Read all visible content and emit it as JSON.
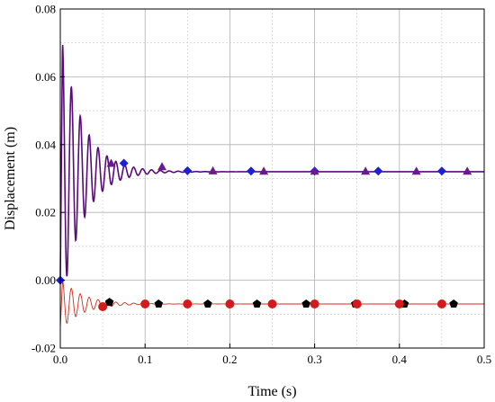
{
  "chart_data": {
    "type": "line",
    "title": "",
    "xlabel": "Time (s)",
    "ylabel": "Displacement (m)",
    "xlim": [
      0,
      0.5
    ],
    "ylim": [
      -0.02,
      0.08
    ],
    "x_ticks": [
      "0.0",
      "0.1",
      "0.2",
      "0.3",
      "0.4",
      "0.5"
    ],
    "y_ticks": [
      "-0.02",
      "0.00",
      "0.02",
      "0.04",
      "0.06",
      "0.08"
    ],
    "grid": true,
    "legend": "none",
    "series": [
      {
        "color": "#5a0a7a",
        "marker": "line",
        "equilibrium": 0.032,
        "initial": 0.0,
        "first_peak": 0.07,
        "description_points": [
          [
            0.0,
            0.0
          ],
          [
            0.003,
            0.07
          ],
          [
            0.012,
            0.003
          ],
          [
            0.019,
            0.053
          ],
          [
            0.03,
            0.043
          ],
          [
            0.06,
            0.036
          ],
          [
            0.1,
            0.033
          ],
          [
            0.15,
            0.032
          ],
          [
            0.5,
            0.032
          ]
        ]
      },
      {
        "color": "#d42a1a",
        "marker": "line",
        "equilibrium": -0.007,
        "initial": -0.014,
        "first_peak": 0.0,
        "description_points": [
          [
            0.0,
            -0.014
          ],
          [
            0.003,
            0.0
          ],
          [
            0.03,
            -0.004
          ],
          [
            0.06,
            -0.006
          ],
          [
            0.1,
            -0.007
          ],
          [
            0.5,
            -0.007
          ]
        ]
      },
      {
        "color": "#1f1fd6",
        "marker": "diamond",
        "x": [
          0.0,
          0.075,
          0.15,
          0.225,
          0.3,
          0.375,
          0.45
        ],
        "y": [
          0.0,
          0.0345,
          0.0323,
          0.0322,
          0.0322,
          0.0322,
          0.0322
        ]
      },
      {
        "color": "#6a1a8a",
        "marker": "triangle",
        "x": [
          0.06,
          0.12,
          0.18,
          0.24,
          0.3,
          0.36,
          0.42,
          0.48
        ],
        "y": [
          0.0345,
          0.0335,
          0.0323,
          0.0322,
          0.0322,
          0.0322,
          0.0322,
          0.0322
        ]
      },
      {
        "color": "#000000",
        "marker": "pentagon",
        "x": [
          0.058,
          0.116,
          0.174,
          0.232,
          0.29,
          0.348,
          0.406,
          0.464
        ],
        "y": [
          -0.0065,
          -0.007,
          -0.007,
          -0.007,
          -0.007,
          -0.007,
          -0.007,
          -0.007
        ]
      },
      {
        "color": "#d41a1a",
        "marker": "circle",
        "x": [
          0.05,
          0.1,
          0.15,
          0.2,
          0.25,
          0.3,
          0.35,
          0.4,
          0.45
        ],
        "y": [
          -0.0078,
          -0.007,
          -0.007,
          -0.007,
          -0.007,
          -0.007,
          -0.007,
          -0.007,
          -0.007
        ]
      }
    ]
  }
}
